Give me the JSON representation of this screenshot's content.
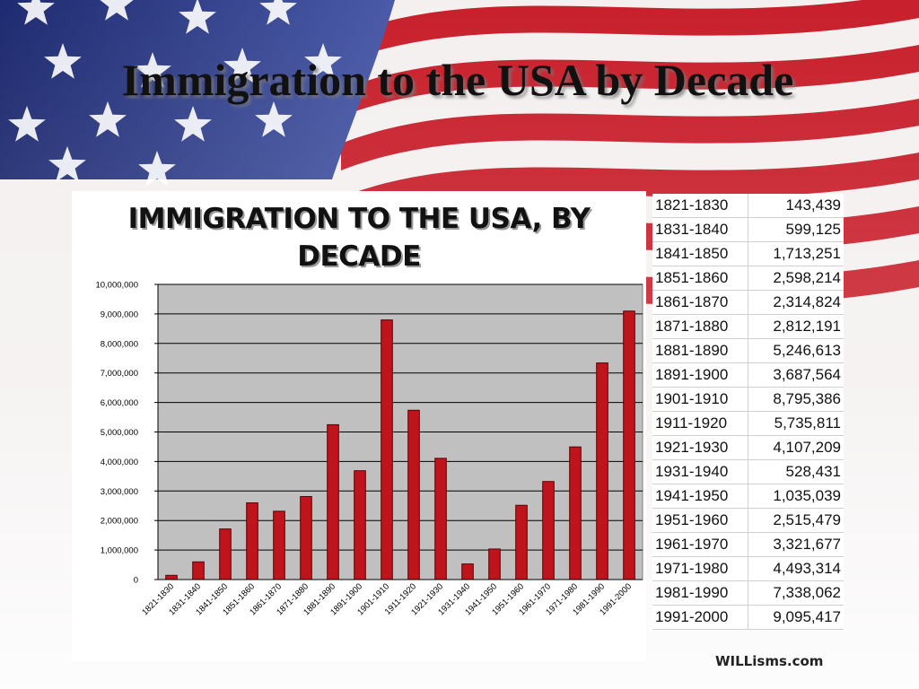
{
  "slide": {
    "title": "Immigration to the USA by Decade",
    "watermark": "WILLisms.com"
  },
  "colors": {
    "bar": "#c0141c",
    "bar_edge": "#5a0000",
    "plot_bg": "#c0c0c0",
    "flag_red": "#c8202c",
    "flag_blue": "#2c3a88"
  },
  "chart_data": {
    "type": "bar",
    "title": "IMMIGRATION TO THE USA, BY DECADE",
    "xlabel": "",
    "ylabel": "",
    "ylim": [
      0,
      10000000
    ],
    "yticks": [
      "0",
      "1,000,000",
      "2,000,000",
      "3,000,000",
      "4,000,000",
      "5,000,000",
      "6,000,000",
      "7,000,000",
      "8,000,000",
      "9,000,000",
      "10,000,000"
    ],
    "grid": true,
    "categories": [
      "1821-1830",
      "1831-1840",
      "1841-1850",
      "1851-1860",
      "1861-1870",
      "1871-1880",
      "1881-1890",
      "1891-1900",
      "1901-1910",
      "1911-1920",
      "1921-1930",
      "1931-1940",
      "1941-1950",
      "1951-1960",
      "1961-1970",
      "1971-1980",
      "1981-1990",
      "1991-2000"
    ],
    "values": [
      143439,
      599125,
      1713251,
      2598214,
      2314824,
      2812191,
      5246613,
      3687564,
      8795386,
      5735811,
      4107209,
      528431,
      1035039,
      2515479,
      3321677,
      4493314,
      7338062,
      9095417
    ]
  },
  "table": {
    "rows": [
      {
        "decade": "1821-1830",
        "count": "143,439"
      },
      {
        "decade": "1831-1840",
        "count": "599,125"
      },
      {
        "decade": "1841-1850",
        "count": "1,713,251"
      },
      {
        "decade": "1851-1860",
        "count": "2,598,214"
      },
      {
        "decade": "1861-1870",
        "count": "2,314,824"
      },
      {
        "decade": "1871-1880",
        "count": "2,812,191"
      },
      {
        "decade": "1881-1890",
        "count": "5,246,613"
      },
      {
        "decade": "1891-1900",
        "count": "3,687,564"
      },
      {
        "decade": "1901-1910",
        "count": "8,795,386"
      },
      {
        "decade": "1911-1920",
        "count": "5,735,811"
      },
      {
        "decade": "1921-1930",
        "count": "4,107,209"
      },
      {
        "decade": "1931-1940",
        "count": "528,431"
      },
      {
        "decade": "1941-1950",
        "count": "1,035,039"
      },
      {
        "decade": "1951-1960",
        "count": "2,515,479"
      },
      {
        "decade": "1961-1970",
        "count": "3,321,677"
      },
      {
        "decade": "1971-1980",
        "count": "4,493,314"
      },
      {
        "decade": "1981-1990",
        "count": "7,338,062"
      },
      {
        "decade": "1991-2000",
        "count": "9,095,417"
      }
    ]
  }
}
